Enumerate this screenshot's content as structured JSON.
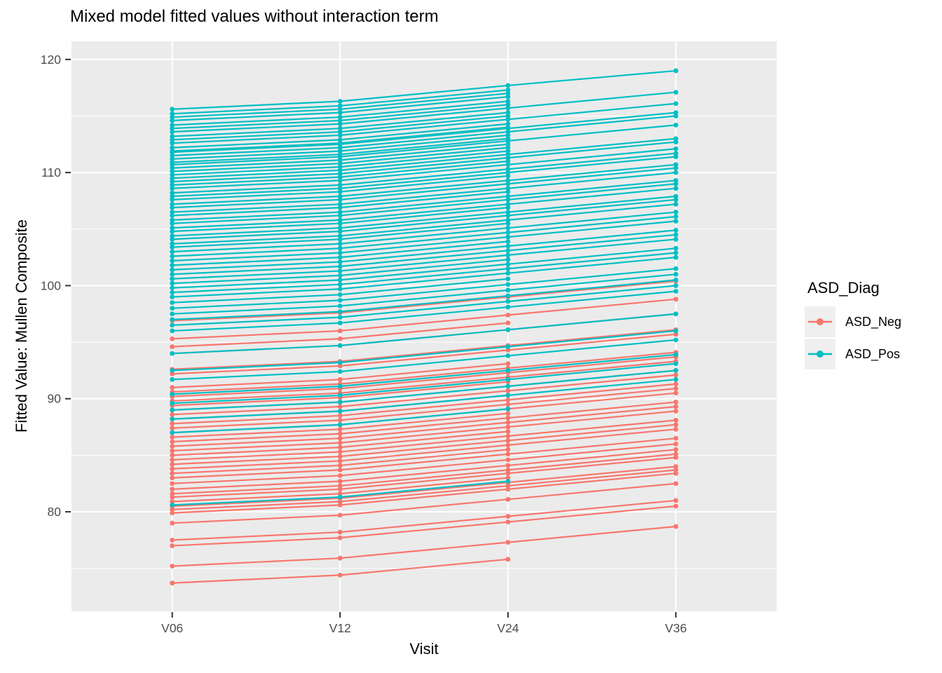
{
  "chart_data": {
    "type": "line",
    "title": "Mixed model fitted values without interaction term",
    "xlabel": "Visit",
    "ylabel": "Fitted Value: Mullen Composite",
    "x_categories": [
      "V06",
      "V12",
      "V24",
      "V36"
    ],
    "ylim": [
      71.2,
      121.6
    ],
    "yticks_major": [
      80,
      90,
      100,
      110,
      120
    ],
    "yticks_minor": [
      75,
      85,
      95,
      105,
      115
    ],
    "grid": "on",
    "panel_bg": "#EBEBEB",
    "grid_color": "#FFFFFF",
    "tick_label_color": "#4D4D4D",
    "tick_mark_color": "#333333",
    "legend": {
      "title": "ASD_Diag",
      "position": "right",
      "entries": [
        {
          "label": "ASD_Neg",
          "color": "#F8766D",
          "group": "neg"
        },
        {
          "label": "ASD_Pos",
          "color": "#00BFC4",
          "group": "pos"
        }
      ]
    },
    "series": [
      {
        "g": "neg",
        "v": [
          96.9,
          97.6,
          99.0,
          100.4
        ]
      },
      {
        "g": "neg",
        "v": [
          95.3,
          96.0,
          97.4,
          98.8
        ]
      },
      {
        "g": "neg",
        "v": [
          94.6,
          95.3,
          96.7,
          null
        ]
      },
      {
        "g": "neg",
        "v": [
          94.0,
          94.7,
          96.1,
          97.5
        ]
      },
      {
        "g": "neg",
        "v": [
          92.6,
          93.3,
          94.7,
          96.1
        ]
      },
      {
        "g": "neg",
        "v": [
          92.2,
          92.9,
          94.3,
          95.7
        ]
      },
      {
        "g": "neg",
        "v": [
          91.0,
          91.7,
          93.1,
          null
        ]
      },
      {
        "g": "neg",
        "v": [
          90.6,
          91.3,
          92.7,
          94.1
        ]
      },
      {
        "g": "neg",
        "v": [
          90.2,
          90.9,
          92.3,
          93.7
        ]
      },
      {
        "g": "neg",
        "v": [
          89.8,
          90.5,
          91.9,
          93.3
        ]
      },
      {
        "g": "neg",
        "v": [
          89.4,
          90.1,
          91.5,
          null
        ]
      },
      {
        "g": "neg",
        "v": [
          89.0,
          89.7,
          91.1,
          92.5
        ]
      },
      {
        "g": "neg",
        "v": [
          88.6,
          89.3,
          90.7,
          92.1
        ]
      },
      {
        "g": "neg",
        "v": [
          88.2,
          88.9,
          90.3,
          null
        ]
      },
      {
        "g": "neg",
        "v": [
          87.8,
          88.5,
          89.9,
          91.3
        ]
      },
      {
        "g": "neg",
        "v": [
          87.4,
          88.1,
          89.5,
          90.9
        ]
      },
      {
        "g": "neg",
        "v": [
          87.0,
          87.7,
          89.1,
          90.5
        ]
      },
      {
        "g": "neg",
        "v": [
          86.6,
          87.3,
          88.7,
          null
        ]
      },
      {
        "g": "neg",
        "v": [
          86.2,
          86.9,
          88.3,
          89.7
        ]
      },
      {
        "g": "neg",
        "v": [
          85.8,
          86.5,
          87.9,
          89.3
        ]
      },
      {
        "g": "neg",
        "v": [
          85.4,
          86.1,
          87.5,
          88.9
        ]
      },
      {
        "g": "neg",
        "v": [
          85.0,
          85.7,
          87.1,
          null
        ]
      },
      {
        "g": "neg",
        "v": [
          84.6,
          85.3,
          86.7,
          88.1
        ]
      },
      {
        "g": "neg",
        "v": [
          84.2,
          84.9,
          86.3,
          87.7
        ]
      },
      {
        "g": "neg",
        "v": [
          83.8,
          84.5,
          85.9,
          87.3
        ]
      },
      {
        "g": "neg",
        "v": [
          83.4,
          84.1,
          85.5,
          null
        ]
      },
      {
        "g": "neg",
        "v": [
          83.0,
          83.7,
          85.1,
          86.5
        ]
      },
      {
        "g": "neg",
        "v": [
          82.5,
          83.2,
          84.6,
          86.0
        ]
      },
      {
        "g": "neg",
        "v": [
          82.0,
          82.7,
          84.1,
          85.5
        ]
      },
      {
        "g": "neg",
        "v": [
          81.6,
          82.3,
          83.7,
          85.1
        ]
      },
      {
        "g": "neg",
        "v": [
          81.3,
          82.0,
          83.4,
          84.8
        ]
      },
      {
        "g": "neg",
        "v": [
          80.9,
          81.6,
          83.0,
          null
        ]
      },
      {
        "g": "neg",
        "v": [
          80.5,
          81.2,
          82.6,
          84.0
        ]
      },
      {
        "g": "neg",
        "v": [
          80.2,
          80.9,
          82.3,
          83.7
        ]
      },
      {
        "g": "neg",
        "v": [
          79.9,
          80.6,
          82.0,
          83.4
        ]
      },
      {
        "g": "neg",
        "v": [
          79.0,
          79.7,
          81.1,
          82.5
        ]
      },
      {
        "g": "neg",
        "v": [
          77.5,
          78.2,
          79.6,
          81.0
        ]
      },
      {
        "g": "neg",
        "v": [
          77.0,
          77.7,
          79.1,
          80.5
        ]
      },
      {
        "g": "neg",
        "v": [
          75.2,
          75.9,
          77.3,
          78.7
        ]
      },
      {
        "g": "neg",
        "v": [
          73.7,
          74.4,
          75.8,
          null
        ]
      },
      {
        "g": "pos",
        "v": [
          115.6,
          116.3,
          117.7,
          119.0
        ]
      },
      {
        "g": "pos",
        "v": [
          115.2,
          115.9,
          117.3,
          null
        ]
      },
      {
        "g": "pos",
        "v": [
          114.9,
          115.6,
          117.0,
          null
        ]
      },
      {
        "g": "pos",
        "v": [
          114.6,
          115.3,
          116.7,
          null
        ]
      },
      {
        "g": "pos",
        "v": [
          114.2,
          114.9,
          116.3,
          null
        ]
      },
      {
        "g": "pos",
        "v": [
          113.9,
          114.6,
          116.0,
          null
        ]
      },
      {
        "g": "pos",
        "v": [
          113.6,
          114.3,
          115.7,
          117.1
        ]
      },
      {
        "g": "pos",
        "v": [
          113.2,
          113.9,
          115.3,
          null
        ]
      },
      {
        "g": "pos",
        "v": [
          112.9,
          113.6,
          115.0,
          null
        ]
      },
      {
        "g": "pos",
        "v": [
          112.6,
          113.3,
          114.7,
          116.1
        ]
      },
      {
        "g": "pos",
        "v": [
          112.2,
          112.9,
          114.3,
          null
        ]
      },
      {
        "g": "pos",
        "v": [
          111.9,
          112.6,
          114.0,
          null
        ]
      },
      {
        "g": "pos",
        "v": [
          111.8,
          112.5,
          113.9,
          115.3
        ]
      },
      {
        "g": "pos",
        "v": [
          111.5,
          112.2,
          113.6,
          115.0
        ]
      },
      {
        "g": "pos",
        "v": [
          111.2,
          111.9,
          113.3,
          null
        ]
      },
      {
        "g": "pos",
        "v": [
          110.9,
          111.6,
          113.0,
          null
        ]
      },
      {
        "g": "pos",
        "v": [
          110.7,
          111.4,
          112.8,
          114.2
        ]
      },
      {
        "g": "pos",
        "v": [
          110.4,
          111.1,
          112.5,
          null
        ]
      },
      {
        "g": "pos",
        "v": [
          110.1,
          110.8,
          112.2,
          null
        ]
      },
      {
        "g": "pos",
        "v": [
          109.8,
          110.5,
          111.9,
          null
        ]
      },
      {
        "g": "pos",
        "v": [
          109.5,
          110.2,
          111.6,
          113.0
        ]
      },
      {
        "g": "pos",
        "v": [
          109.2,
          109.9,
          111.3,
          112.7
        ]
      },
      {
        "g": "pos",
        "v": [
          108.9,
          109.6,
          111.0,
          null
        ]
      },
      {
        "g": "pos",
        "v": [
          108.6,
          109.3,
          110.7,
          112.1
        ]
      },
      {
        "g": "pos",
        "v": [
          108.2,
          108.9,
          110.3,
          111.7
        ]
      },
      {
        "g": "pos",
        "v": [
          107.9,
          108.6,
          110.0,
          111.4
        ]
      },
      {
        "g": "pos",
        "v": [
          107.6,
          108.3,
          109.7,
          null
        ]
      },
      {
        "g": "pos",
        "v": [
          107.2,
          107.9,
          109.3,
          110.7
        ]
      },
      {
        "g": "pos",
        "v": [
          106.9,
          107.6,
          109.0,
          110.4
        ]
      },
      {
        "g": "pos",
        "v": [
          106.5,
          107.2,
          108.6,
          110.0
        ]
      },
      {
        "g": "pos",
        "v": [
          106.2,
          106.9,
          108.3,
          null
        ]
      },
      {
        "g": "pos",
        "v": [
          105.8,
          106.5,
          107.9,
          109.3
        ]
      },
      {
        "g": "pos",
        "v": [
          105.5,
          106.2,
          107.6,
          109.0
        ]
      },
      {
        "g": "pos",
        "v": [
          105.1,
          105.8,
          107.2,
          108.6
        ]
      },
      {
        "g": "pos",
        "v": [
          104.8,
          105.5,
          106.9,
          null
        ]
      },
      {
        "g": "pos",
        "v": [
          104.4,
          105.1,
          106.5,
          107.9
        ]
      },
      {
        "g": "pos",
        "v": [
          104.1,
          104.8,
          106.2,
          107.6
        ]
      },
      {
        "g": "pos",
        "v": [
          103.7,
          104.4,
          105.8,
          107.2
        ]
      },
      {
        "g": "pos",
        "v": [
          103.4,
          104.1,
          105.5,
          null
        ]
      },
      {
        "g": "pos",
        "v": [
          103.0,
          103.7,
          105.1,
          106.5
        ]
      },
      {
        "g": "pos",
        "v": [
          102.6,
          103.3,
          104.7,
          106.1
        ]
      },
      {
        "g": "pos",
        "v": [
          102.2,
          102.9,
          104.3,
          105.7
        ]
      },
      {
        "g": "pos",
        "v": [
          101.8,
          102.5,
          103.9,
          null
        ]
      },
      {
        "g": "pos",
        "v": [
          101.4,
          102.1,
          103.5,
          104.9
        ]
      },
      {
        "g": "pos",
        "v": [
          101.0,
          101.7,
          103.1,
          104.5
        ]
      },
      {
        "g": "pos",
        "v": [
          100.6,
          101.3,
          102.7,
          104.1
        ]
      },
      {
        "g": "pos",
        "v": [
          100.2,
          100.9,
          102.3,
          null
        ]
      },
      {
        "g": "pos",
        "v": [
          99.8,
          100.5,
          101.9,
          103.3
        ]
      },
      {
        "g": "pos",
        "v": [
          99.4,
          100.1,
          101.5,
          102.9
        ]
      },
      {
        "g": "pos",
        "v": [
          99.0,
          99.7,
          101.1,
          102.5
        ]
      },
      {
        "g": "pos",
        "v": [
          98.5,
          99.2,
          100.6,
          null
        ]
      },
      {
        "g": "pos",
        "v": [
          98.0,
          98.7,
          100.1,
          101.5
        ]
      },
      {
        "g": "pos",
        "v": [
          97.5,
          98.2,
          99.6,
          101.0
        ]
      },
      {
        "g": "pos",
        "v": [
          97.0,
          97.7,
          99.1,
          100.5
        ]
      },
      {
        "g": "pos",
        "v": [
          96.5,
          97.2,
          98.6,
          100.0
        ]
      },
      {
        "g": "pos",
        "v": [
          96.0,
          96.7,
          98.1,
          99.5
        ]
      },
      {
        "g": "pos",
        "v": [
          94.0,
          94.7,
          96.1,
          97.5
        ]
      },
      {
        "g": "pos",
        "v": [
          92.5,
          93.2,
          94.6,
          96.0
        ]
      },
      {
        "g": "pos",
        "v": [
          91.7,
          92.4,
          93.8,
          95.2
        ]
      },
      {
        "g": "pos",
        "v": [
          90.4,
          91.1,
          92.5,
          93.9
        ]
      },
      {
        "g": "pos",
        "v": [
          89.6,
          90.3,
          91.7,
          93.1
        ]
      },
      {
        "g": "pos",
        "v": [
          89.0,
          89.7,
          91.1,
          92.5
        ]
      },
      {
        "g": "pos",
        "v": [
          88.2,
          88.9,
          90.3,
          91.7
        ]
      },
      {
        "g": "pos",
        "v": [
          87.0,
          87.7,
          89.1,
          null
        ]
      },
      {
        "g": "pos",
        "v": [
          80.6,
          81.3,
          82.7,
          null
        ]
      }
    ]
  }
}
